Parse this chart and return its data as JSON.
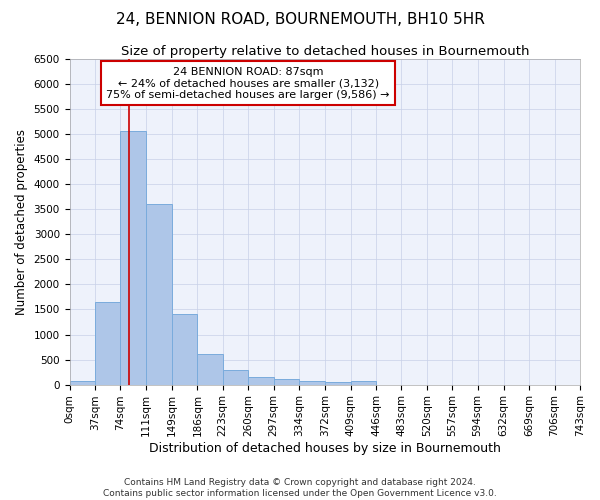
{
  "title": "24, BENNION ROAD, BOURNEMOUTH, BH10 5HR",
  "subtitle": "Size of property relative to detached houses in Bournemouth",
  "xlabel": "Distribution of detached houses by size in Bournemouth",
  "ylabel": "Number of detached properties",
  "footer_line1": "Contains HM Land Registry data © Crown copyright and database right 2024.",
  "footer_line2": "Contains public sector information licensed under the Open Government Licence v3.0.",
  "bar_edges": [
    0,
    37,
    74,
    111,
    149,
    186,
    223,
    260,
    297,
    334,
    372,
    409,
    446,
    483,
    520,
    557,
    594,
    632,
    669,
    706,
    743
  ],
  "bar_heights": [
    75,
    1640,
    5060,
    3600,
    1410,
    610,
    290,
    150,
    110,
    75,
    60,
    75,
    0,
    0,
    0,
    0,
    0,
    0,
    0,
    0
  ],
  "bar_color": "#aec6e8",
  "bar_edge_color": "#7aabdc",
  "vline_x": 87,
  "vline_color": "#cc0000",
  "annotation_line1": "24 BENNION ROAD: 87sqm",
  "annotation_line2": "← 24% of detached houses are smaller (3,132)",
  "annotation_line3": "75% of semi-detached houses are larger (9,586) →",
  "annotation_box_color": "#ffffff",
  "annotation_border_color": "#cc0000",
  "ylim": [
    0,
    6500
  ],
  "yticks": [
    0,
    500,
    1000,
    1500,
    2000,
    2500,
    3000,
    3500,
    4000,
    4500,
    5000,
    5500,
    6000,
    6500
  ],
  "background_color": "#eef2fb",
  "grid_color": "#c8d0e8",
  "title_fontsize": 11,
  "subtitle_fontsize": 9.5,
  "xlabel_fontsize": 9,
  "ylabel_fontsize": 8.5,
  "tick_fontsize": 7.5,
  "annotation_fontsize": 8,
  "footer_fontsize": 6.5
}
